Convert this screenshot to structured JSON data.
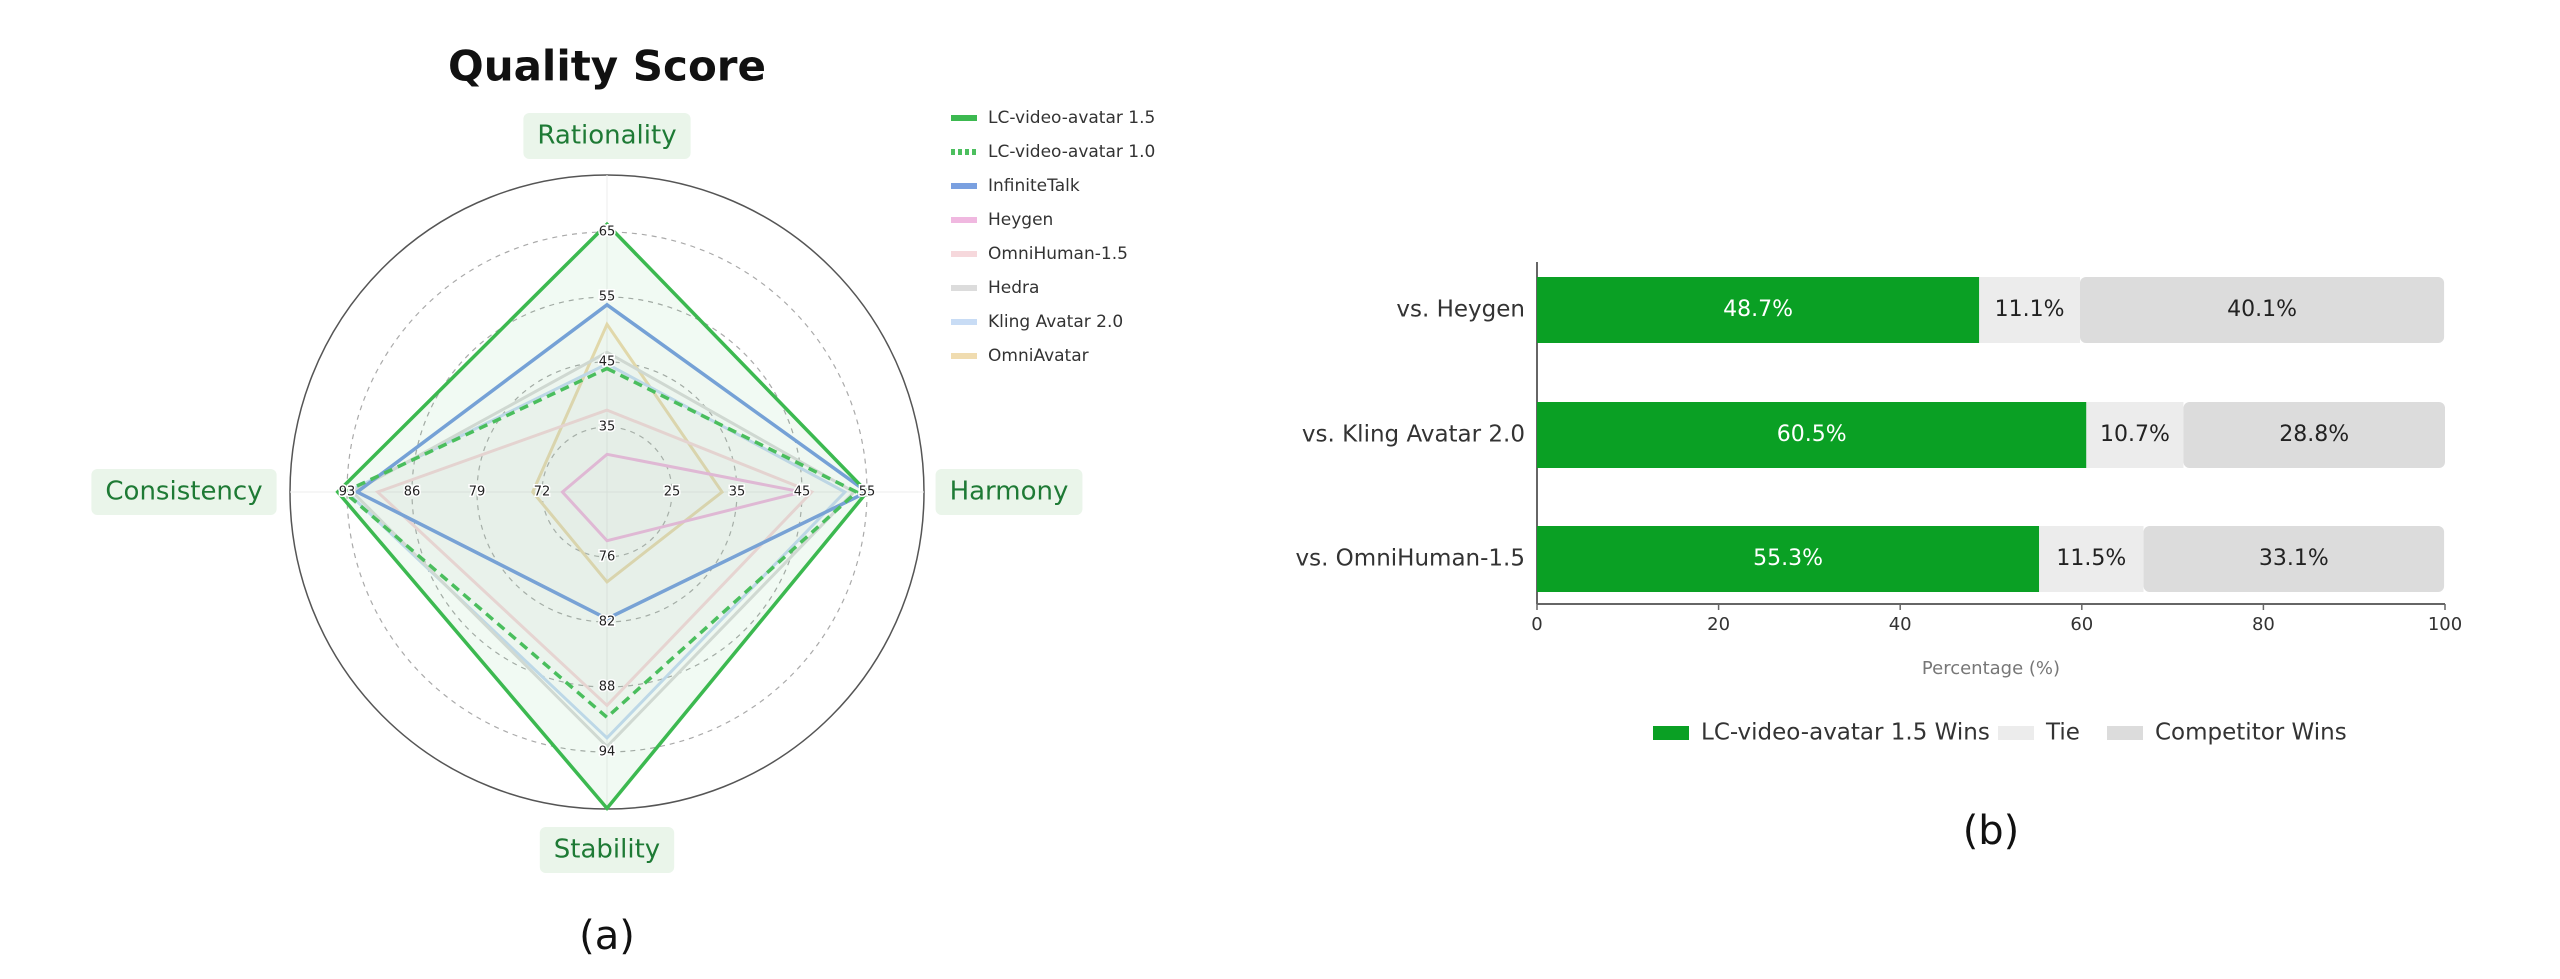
{
  "chart_data": [
    {
      "type": "radar",
      "title": "Quality Score",
      "caption": "(a)",
      "axes": [
        {
          "name": "Rationality",
          "lim": [
            25,
            75
          ],
          "ticks": [
            35,
            45,
            55,
            65
          ]
        },
        {
          "name": "Harmony",
          "lim": [
            15,
            65
          ],
          "ticks": [
            25,
            35,
            45,
            55
          ]
        },
        {
          "name": "Stability",
          "lim": [
            70,
            100
          ],
          "ticks": [
            76,
            82,
            88,
            94
          ]
        },
        {
          "name": "Consistency",
          "lim": [
            65,
            100
          ],
          "ticks": [
            72,
            79,
            86,
            93
          ]
        }
      ],
      "series": [
        {
          "name": "LC-video-avatar 1.5",
          "color": "#3cb950",
          "values": [
            66.2,
            55,
            99.2,
            94
          ]
        },
        {
          "name": "LC-video-avatar 1.0",
          "color": "#4cbf5e",
          "dashed": true,
          "values": [
            44,
            53.4,
            90.8,
            93.3
          ]
        },
        {
          "name": "InfiniteTalk",
          "color": "#7aa0e0",
          "values": [
            53.8,
            55,
            81.7,
            91.9
          ]
        },
        {
          "name": "Heygen",
          "color": "#f0b8e0",
          "values": [
            30.8,
            45,
            74.5,
            69.8
          ]
        },
        {
          "name": "OmniHuman-1.5",
          "color": "#f6d8dc",
          "values": [
            37.6,
            46.5,
            89.7,
            89.7
          ]
        },
        {
          "name": "Hedra",
          "color": "#dcdcdc",
          "values": [
            46.5,
            53,
            93.5,
            92.4
          ]
        },
        {
          "name": "Kling Avatar 2.0",
          "color": "#c8dcf5",
          "values": [
            44.7,
            51.6,
            92.7,
            93
          ]
        },
        {
          "name": "OmniAvatar",
          "color": "#f0dcb0",
          "values": [
            50.8,
            32.7,
            78.3,
            73
          ]
        }
      ]
    },
    {
      "type": "bar",
      "orientation": "horizontal",
      "stacked": true,
      "caption": "(b)",
      "categories": [
        "vs. Heygen",
        "vs. Kling Avatar 2.0",
        "vs. OmniHuman-1.5"
      ],
      "series": [
        {
          "name": "LC-video-avatar 1.5 Wins",
          "color": "#0aa024",
          "values": [
            48.7,
            60.5,
            55.3
          ],
          "value_labels": [
            "48.7%",
            "60.5%",
            "55.3%"
          ]
        },
        {
          "name": "Tie",
          "color": "#ececec",
          "values": [
            11.1,
            10.7,
            11.5
          ],
          "value_labels": [
            "11.1%",
            "10.7%",
            "11.5%"
          ]
        },
        {
          "name": "Competitor Wins",
          "color": "#dcdcdc",
          "values": [
            40.1,
            28.8,
            33.1
          ],
          "value_labels": [
            "40.1%",
            "28.8%",
            "33.1%"
          ]
        }
      ],
      "xlim": [
        0,
        100
      ],
      "xticks": [
        0,
        20,
        40,
        60,
        80,
        100
      ],
      "xlabel": "Percentage (%)"
    }
  ]
}
